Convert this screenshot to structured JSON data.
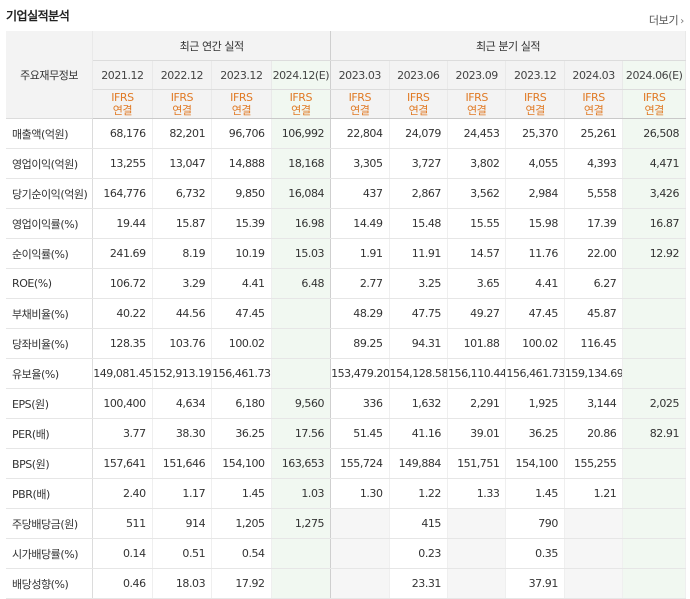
{
  "page": {
    "title": "기업실적분석",
    "more_label": "더보기"
  },
  "table": {
    "row_header_label": "주요재무정보",
    "group_annual": "최근 연간 실적",
    "group_quarterly": "최근 분기 실적",
    "annual_periods": [
      "2021.12",
      "2022.12",
      "2023.12",
      "2024.12(E)"
    ],
    "quarterly_periods": [
      "2023.03",
      "2023.06",
      "2023.09",
      "2023.12",
      "2024.03",
      "2024.06(E)"
    ],
    "ifrs_line1": "IFRS",
    "ifrs_line2": "연결",
    "rows": [
      {
        "label": "매출액(억원)",
        "values": [
          "68,176",
          "82,201",
          "96,706",
          "106,992",
          "22,804",
          "24,079",
          "24,453",
          "25,370",
          "25,261",
          "26,508"
        ]
      },
      {
        "label": "영업이익(억원)",
        "values": [
          "13,255",
          "13,047",
          "14,888",
          "18,168",
          "3,305",
          "3,727",
          "3,802",
          "4,055",
          "4,393",
          "4,471"
        ]
      },
      {
        "label": "당기순이익(억원)",
        "values": [
          "164,776",
          "6,732",
          "9,850",
          "16,084",
          "437",
          "2,867",
          "3,562",
          "2,984",
          "5,558",
          "3,426"
        ]
      },
      {
        "label": "영업이익률(%)",
        "values": [
          "19.44",
          "15.87",
          "15.39",
          "16.98",
          "14.49",
          "15.48",
          "15.55",
          "15.98",
          "17.39",
          "16.87"
        ]
      },
      {
        "label": "순이익률(%)",
        "values": [
          "241.69",
          "8.19",
          "10.19",
          "15.03",
          "1.91",
          "11.91",
          "14.57",
          "11.76",
          "22.00",
          "12.92"
        ]
      },
      {
        "label": "ROE(%)",
        "values": [
          "106.72",
          "3.29",
          "4.41",
          "6.48",
          "2.77",
          "3.25",
          "3.65",
          "4.41",
          "6.27",
          ""
        ]
      },
      {
        "label": "부채비율(%)",
        "values": [
          "40.22",
          "44.56",
          "47.45",
          "",
          "48.29",
          "47.75",
          "49.27",
          "47.45",
          "45.87",
          ""
        ]
      },
      {
        "label": "당좌비율(%)",
        "values": [
          "128.35",
          "103.76",
          "100.02",
          "",
          "89.25",
          "94.31",
          "101.88",
          "100.02",
          "116.45",
          ""
        ]
      },
      {
        "label": "유보율(%)",
        "values": [
          "149,081.45",
          "152,913.19",
          "156,461.73",
          "",
          "153,479.20",
          "154,128.58",
          "156,110.44",
          "156,461.73",
          "159,134.69",
          ""
        ]
      },
      {
        "label": "EPS(원)",
        "values": [
          "100,400",
          "4,634",
          "6,180",
          "9,560",
          "336",
          "1,632",
          "2,291",
          "1,925",
          "3,144",
          "2,025"
        ]
      },
      {
        "label": "PER(배)",
        "values": [
          "3.77",
          "38.30",
          "36.25",
          "17.56",
          "51.45",
          "41.16",
          "39.01",
          "36.25",
          "20.86",
          "82.91"
        ]
      },
      {
        "label": "BPS(원)",
        "values": [
          "157,641",
          "151,646",
          "154,100",
          "163,653",
          "155,724",
          "149,884",
          "151,751",
          "154,100",
          "155,255",
          ""
        ]
      },
      {
        "label": "PBR(배)",
        "values": [
          "2.40",
          "1.17",
          "1.45",
          "1.03",
          "1.30",
          "1.22",
          "1.33",
          "1.45",
          "1.21",
          ""
        ]
      },
      {
        "label": "주당배당금(원)",
        "values": [
          "511",
          "914",
          "1,205",
          "1,275",
          "",
          "415",
          "",
          "790",
          "",
          ""
        ]
      },
      {
        "label": "시가배당률(%)",
        "values": [
          "0.14",
          "0.51",
          "0.54",
          "",
          "",
          "0.23",
          "",
          "0.35",
          "",
          ""
        ]
      },
      {
        "label": "배당성향(%)",
        "values": [
          "0.46",
          "18.03",
          "17.92",
          "",
          "",
          "23.31",
          "",
          "37.91",
          "",
          ""
        ]
      }
    ]
  }
}
